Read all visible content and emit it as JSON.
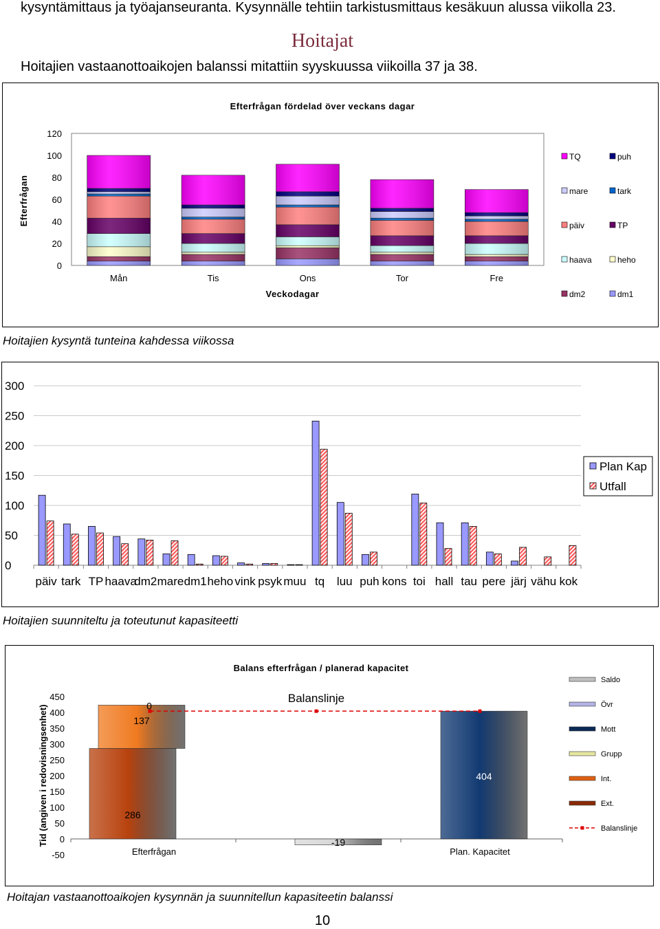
{
  "document": {
    "intro_line": "kysyntämittaus ja työajanseuranta. Kysynnälle tehtiin tarkistusmittaus kesäkuun alussa viikolla 23.",
    "heading": "Hoitajat",
    "paragraph": "Hoitajien vastaanottoaikojen balanssi mitattiin syyskuussa viikoilla 37 ja 38.",
    "caption1": "Hoitajien kysyntä tunteina kahdessa viikossa",
    "caption2": "Hoitajien suunniteltu ja toteutunut kapasiteetti",
    "caption3": "Hoitajan vastaanottoaikojen kysynnän ja suunnitellun kapasiteetin balanssi",
    "page_number": "10"
  },
  "chart_data": [
    {
      "type": "bar",
      "stacked": true,
      "title": "Efterfrågan fördelad över veckans dagar",
      "xlabel": "Veckodagar",
      "ylabel": "Efterfrågan",
      "ylim": [
        0,
        120
      ],
      "yticks": [
        0,
        20,
        40,
        60,
        80,
        100,
        120
      ],
      "grid": false,
      "legend_position": "right",
      "categories": [
        "Mån",
        "Tis",
        "Ons",
        "Tor",
        "Fre"
      ],
      "series": [
        {
          "name": "dm1",
          "color": "#9999ff",
          "values": [
            4,
            4,
            6,
            4,
            4
          ]
        },
        {
          "name": "dm2",
          "color": "#993366",
          "values": [
            4,
            6,
            10,
            6,
            4
          ]
        },
        {
          "name": "heho",
          "color": "#ffffcc",
          "values": [
            9,
            2,
            2,
            2,
            2
          ]
        },
        {
          "name": "haava",
          "color": "#ccffff",
          "values": [
            12,
            8,
            8,
            6,
            10
          ]
        },
        {
          "name": "TP",
          "color": "#660066",
          "values": [
            14,
            9,
            11,
            9,
            7
          ]
        },
        {
          "name": "päiv",
          "color": "#ff8080",
          "values": [
            20,
            13,
            16,
            14,
            13
          ]
        },
        {
          "name": "tark",
          "color": "#0066cc",
          "values": [
            2,
            2,
            2,
            2,
            2
          ]
        },
        {
          "name": "mare",
          "color": "#ccccff",
          "values": [
            2,
            8,
            8,
            6,
            3
          ]
        },
        {
          "name": "puh",
          "color": "#000080",
          "values": [
            3,
            3,
            4,
            3,
            3
          ]
        },
        {
          "name": "TQ",
          "color": "#ff00ff",
          "values": [
            30,
            27,
            25,
            26,
            21
          ]
        }
      ],
      "legend_order": [
        "TQ",
        "puh",
        "mare",
        "tark",
        "päiv",
        "TP",
        "haava",
        "heho",
        "dm2",
        "dm1"
      ]
    },
    {
      "type": "bar",
      "ylim": [
        0,
        300
      ],
      "yticks": [
        0,
        50,
        100,
        150,
        200,
        250,
        300
      ],
      "grid": true,
      "legend_position": "right",
      "categories": [
        "päiv",
        "tark",
        "TP",
        "haava",
        "dm2",
        "mare",
        "dm1",
        "heho",
        "vink",
        "psyk",
        "muu",
        "tq",
        "luu",
        "puh",
        "kons",
        "toi",
        "hall",
        "tau",
        "pere",
        "järj",
        "vähu",
        "kok"
      ],
      "series": [
        {
          "name": "Plan Kap",
          "color": "#9999ff",
          "values": [
            117,
            69,
            65,
            48,
            44,
            19,
            18,
            16,
            4,
            3,
            1,
            241,
            105,
            18,
            0,
            119,
            71,
            71,
            22,
            7,
            0,
            0
          ]
        },
        {
          "name": "Utfall",
          "color": "#ff8080",
          "values": [
            74,
            52,
            54,
            36,
            42,
            41,
            2,
            15,
            2,
            3,
            1,
            194,
            87,
            22,
            0,
            104,
            28,
            65,
            19,
            30,
            14,
            33
          ]
        }
      ]
    },
    {
      "type": "bar",
      "title": "Balans efterfrågan / planerad kapacitet",
      "ylabel": "Tid (angiven i redovisningsenhet)",
      "ylim": [
        -50,
        450
      ],
      "yticks": [
        -50,
        0,
        50,
        100,
        150,
        200,
        250,
        300,
        350,
        400,
        450
      ],
      "legend_position": "right",
      "categories": [
        "Efterfrågan",
        "",
        "Plan. Kapacitet"
      ],
      "bars": [
        {
          "category": "Efterfrågan",
          "segments": [
            {
              "series": "Ext.",
              "value": 286,
              "label": "286"
            },
            {
              "series": "Int.",
              "value": 137,
              "label": "137"
            },
            {
              "series": "Övr",
              "value": 0,
              "label": "0"
            }
          ]
        },
        {
          "category": "",
          "segments": [
            {
              "series": "Saldo",
              "value": -19,
              "label": "-19"
            }
          ]
        },
        {
          "category": "Plan. Kapacitet",
          "segments": [
            {
              "series": "Mott",
              "value": 404,
              "label": "404"
            }
          ]
        }
      ],
      "balance_line": {
        "name": "Balanslinje",
        "label": "Balanslinje",
        "value": 404,
        "color": "#dd0000"
      },
      "legend": [
        {
          "name": "Saldo",
          "color": "#bfbfbf"
        },
        {
          "name": "Övr",
          "color": "#b3b3e6"
        },
        {
          "name": "Mott",
          "color": "#0b2a55"
        },
        {
          "name": "Grupp",
          "color": "#e6e6a0"
        },
        {
          "name": "Int.",
          "color": "#e06010"
        },
        {
          "name": "Ext.",
          "color": "#8a2a06"
        },
        {
          "name": "Balanslinje",
          "color": "#dd0000"
        }
      ]
    }
  ]
}
